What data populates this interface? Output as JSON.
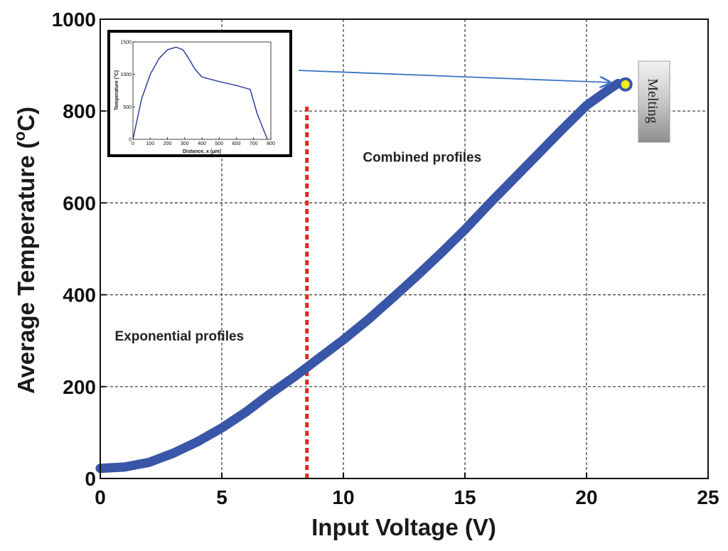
{
  "chart_data": {
    "type": "line",
    "xlabel": "Input Voltage (V)",
    "ylabel": "Average Temperature (",
    "ylabel_sup": "o",
    "ylabel_tail": "C)",
    "xlim": [
      0,
      25
    ],
    "ylim": [
      0,
      1000
    ],
    "xticks": [
      0,
      5,
      10,
      15,
      20,
      25
    ],
    "yticks": [
      0,
      200,
      400,
      600,
      800,
      1000
    ],
    "grid": true,
    "series": [
      {
        "name": "Average temperature",
        "color": "#3a56a8",
        "x": [
          0,
          1,
          2,
          3,
          4,
          5,
          6,
          7,
          8,
          8.5,
          9,
          10,
          11,
          12,
          13,
          14,
          15,
          16,
          17,
          18,
          19,
          20,
          21,
          21.3
        ],
        "y": [
          22,
          25,
          35,
          55,
          80,
          110,
          145,
          185,
          222,
          242,
          262,
          302,
          345,
          392,
          440,
          490,
          542,
          598,
          652,
          706,
          760,
          812,
          850,
          860
        ]
      }
    ],
    "threshold_line": {
      "x": 8.5,
      "y_top": 810,
      "color": "#e8241d"
    },
    "annotations": [
      {
        "text": "Exponential profiles",
        "x": 0.6,
        "y": 300
      },
      {
        "text": "Combined profiles",
        "x": 10.8,
        "y": 690
      }
    ],
    "melting_point": {
      "x": 21.6,
      "y": 858,
      "label": "Melting"
    },
    "inset": {
      "type": "line",
      "xlabel": "Distance, x (μm)",
      "ylabel": "Temperature (°C)",
      "xlim": [
        0,
        800
      ],
      "ylim": [
        0,
        1500
      ],
      "xticks": [
        0,
        100,
        200,
        300,
        400,
        500,
        600,
        700,
        800
      ],
      "yticks": [
        0,
        500,
        1000,
        1500
      ],
      "x": [
        0,
        50,
        100,
        150,
        200,
        250,
        290,
        320,
        360,
        400,
        500,
        600,
        680,
        720,
        780
      ],
      "y": [
        0,
        620,
        1000,
        1240,
        1380,
        1420,
        1380,
        1260,
        1080,
        960,
        890,
        830,
        770,
        400,
        0
      ],
      "color": "#2d3f9c"
    }
  }
}
